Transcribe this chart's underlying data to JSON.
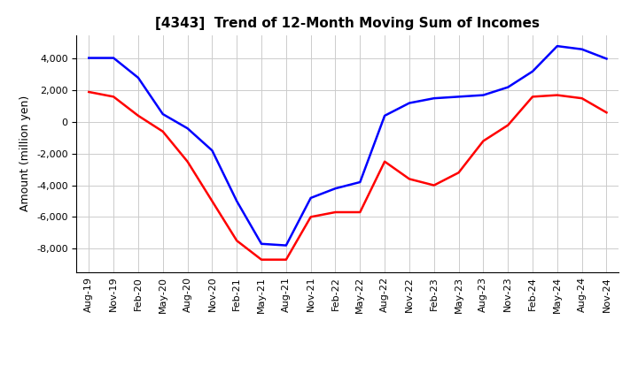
{
  "title": "[4343]  Trend of 12-Month Moving Sum of Incomes",
  "ylabel": "Amount (million yen)",
  "ylim": [
    -9500,
    5500
  ],
  "yticks": [
    -8000,
    -6000,
    -4000,
    -2000,
    0,
    2000,
    4000
  ],
  "x_labels": [
    "Aug-19",
    "Nov-19",
    "Feb-20",
    "May-20",
    "Aug-20",
    "Nov-20",
    "Feb-21",
    "May-21",
    "Aug-21",
    "Nov-21",
    "Feb-22",
    "May-22",
    "Aug-22",
    "Nov-22",
    "Feb-23",
    "May-23",
    "Aug-23",
    "Nov-23",
    "Feb-24",
    "May-24",
    "Aug-24",
    "Nov-24"
  ],
  "ordinary_income": [
    4050,
    4050,
    2800,
    500,
    -400,
    -1800,
    -5000,
    -7700,
    -7800,
    -4800,
    -4200,
    -3800,
    400,
    1200,
    1500,
    1600,
    1700,
    2200,
    3200,
    4800,
    4600,
    4000
  ],
  "net_income": [
    1900,
    1600,
    400,
    -600,
    -2500,
    -5000,
    -7500,
    -8700,
    -8700,
    -6000,
    -5700,
    -5700,
    -2500,
    -3600,
    -4000,
    -3200,
    -1200,
    -200,
    1600,
    1700,
    1500,
    600
  ],
  "ordinary_color": "#0000ff",
  "net_color": "#ff0000",
  "background_color": "#ffffff",
  "grid_color": "#cccccc",
  "title_fontsize": 11,
  "label_fontsize": 9,
  "tick_fontsize": 8
}
